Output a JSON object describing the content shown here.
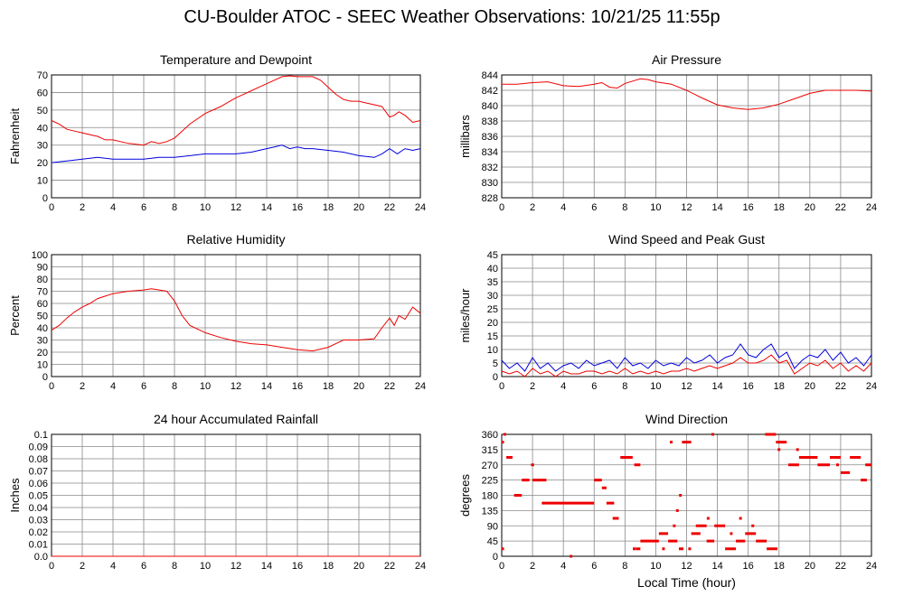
{
  "page": {
    "title": "CU-Boulder ATOC - SEEC Weather Observations: 10/21/25 11:55p"
  },
  "colors": {
    "red": "#ee0000",
    "blue": "#0000dd",
    "grid": "#888888",
    "frame": "#000000"
  },
  "chart_data": [
    {
      "id": "temp",
      "type": "line",
      "title": "Temperature and Dewpoint",
      "ylabel": "Fahrenheit",
      "xlabel": "",
      "xlim": [
        0,
        24
      ],
      "ylim": [
        0,
        70
      ],
      "yticks": [
        0,
        10,
        20,
        30,
        40,
        50,
        60,
        70
      ],
      "xticks": [
        0,
        2,
        4,
        6,
        8,
        10,
        12,
        14,
        16,
        18,
        20,
        22,
        24
      ],
      "grid": true,
      "series": [
        {
          "color": "#ee0000",
          "x": [
            0,
            0.5,
            1,
            1.5,
            2,
            2.5,
            3,
            3.5,
            4,
            5,
            6,
            6.5,
            7,
            7.5,
            8,
            8.5,
            9,
            10,
            11,
            12,
            12.5,
            13,
            13.5,
            14,
            14.5,
            15,
            15.5,
            16,
            16.5,
            17,
            17.5,
            18,
            18.5,
            19,
            19.5,
            20,
            20.5,
            21,
            21.5,
            22,
            22.3,
            22.6,
            23,
            23.5,
            24
          ],
          "y": [
            44,
            42,
            39,
            38,
            37,
            36,
            35,
            33,
            33,
            31,
            30,
            32,
            31,
            32,
            34,
            38,
            42,
            48,
            52,
            57,
            59,
            61,
            63,
            65,
            67,
            69,
            69.5,
            69,
            69,
            69,
            67,
            63,
            59,
            56,
            55,
            55,
            54,
            53,
            52,
            46,
            47,
            49,
            47,
            43,
            44
          ]
        },
        {
          "color": "#0000dd",
          "x": [
            0,
            1,
            2,
            3,
            4,
            5,
            6,
            7,
            8,
            9,
            10,
            11,
            12,
            13,
            14,
            14.5,
            15,
            15.5,
            16,
            16.5,
            17,
            18,
            19,
            20,
            21,
            21.5,
            22,
            22.5,
            23,
            23.5,
            24
          ],
          "y": [
            20,
            21,
            22,
            23,
            22,
            22,
            22,
            23,
            23,
            24,
            25,
            25,
            25,
            26,
            28,
            29,
            30,
            28,
            29,
            28,
            28,
            27,
            26,
            24,
            23,
            25,
            28,
            25,
            28,
            27,
            28
          ]
        }
      ]
    },
    {
      "id": "pressure",
      "type": "line",
      "title": "Air Pressure",
      "ylabel": "millibars",
      "xlabel": "",
      "xlim": [
        0,
        24
      ],
      "ylim": [
        828,
        844
      ],
      "yticks": [
        828,
        830,
        832,
        834,
        836,
        838,
        840,
        842,
        844
      ],
      "xticks": [
        0,
        2,
        4,
        6,
        8,
        10,
        12,
        14,
        16,
        18,
        20,
        22,
        24
      ],
      "grid": true,
      "series": [
        {
          "color": "#ee0000",
          "x": [
            0,
            1,
            2,
            3,
            4,
            5,
            6,
            6.5,
            7,
            7.5,
            8,
            8.5,
            9,
            9.5,
            10,
            11,
            12,
            13,
            14,
            15,
            16,
            17,
            18,
            19,
            20,
            21,
            22,
            23,
            24
          ],
          "y": [
            842.8,
            842.8,
            843.0,
            843.1,
            842.6,
            842.5,
            842.8,
            843.0,
            842.4,
            842.3,
            842.9,
            843.2,
            843.5,
            843.4,
            843.1,
            842.8,
            842.0,
            841.0,
            840.1,
            839.7,
            839.5,
            839.7,
            840.2,
            840.9,
            841.6,
            842.0,
            842.0,
            842.0,
            841.9
          ]
        }
      ]
    },
    {
      "id": "humidity",
      "type": "line",
      "title": "Relative Humidity",
      "ylabel": "Percent",
      "xlabel": "",
      "xlim": [
        0,
        24
      ],
      "ylim": [
        0,
        100
      ],
      "yticks": [
        0,
        10,
        20,
        30,
        40,
        50,
        60,
        70,
        80,
        90,
        100
      ],
      "xticks": [
        0,
        2,
        4,
        6,
        8,
        10,
        12,
        14,
        16,
        18,
        20,
        22,
        24
      ],
      "grid": true,
      "series": [
        {
          "color": "#ee0000",
          "x": [
            0,
            0.5,
            1,
            1.5,
            2,
            2.5,
            3,
            3.5,
            4,
            5,
            6,
            6.5,
            7,
            7.5,
            8,
            8.5,
            9,
            10,
            11,
            12,
            13,
            14,
            15,
            16,
            17,
            18,
            19,
            20,
            21,
            21.5,
            22,
            22.3,
            22.6,
            23,
            23.5,
            24
          ],
          "y": [
            38,
            42,
            48,
            53,
            57,
            60,
            64,
            66,
            68,
            70,
            71,
            72,
            71,
            70,
            62,
            50,
            42,
            36,
            32,
            29,
            27,
            26,
            24,
            22,
            21,
            24,
            30,
            30,
            31,
            40,
            48,
            42,
            50,
            47,
            57,
            52
          ]
        }
      ]
    },
    {
      "id": "wind",
      "type": "line",
      "title": "Wind Speed and Peak Gust",
      "ylabel": "miles/hour",
      "xlabel": "",
      "xlim": [
        0,
        24
      ],
      "ylim": [
        0,
        45
      ],
      "yticks": [
        0,
        5,
        10,
        15,
        20,
        25,
        30,
        35,
        40,
        45
      ],
      "xticks": [
        0,
        2,
        4,
        6,
        8,
        10,
        12,
        14,
        16,
        18,
        20,
        22,
        24
      ],
      "grid": true,
      "series": [
        {
          "color": "#0000dd",
          "x": [
            0,
            0.5,
            1,
            1.5,
            2,
            2.5,
            3,
            3.5,
            4,
            4.5,
            5,
            5.5,
            6,
            6.5,
            7,
            7.5,
            8,
            8.5,
            9,
            9.5,
            10,
            10.5,
            11,
            11.5,
            12,
            12.5,
            13,
            13.5,
            14,
            14.5,
            15,
            15.5,
            16,
            16.5,
            17,
            17.5,
            18,
            18.5,
            19,
            19.5,
            20,
            20.5,
            21,
            21.5,
            22,
            22.5,
            23,
            23.5,
            24
          ],
          "y": [
            6,
            3,
            5,
            2,
            7,
            3,
            5,
            2,
            4,
            5,
            3,
            6,
            4,
            5,
            6,
            3,
            7,
            4,
            5,
            3,
            6,
            4,
            5,
            4,
            7,
            5,
            6,
            8,
            5,
            7,
            8,
            12,
            8,
            7,
            10,
            12,
            7,
            9,
            3,
            6,
            8,
            7,
            10,
            6,
            9,
            5,
            7,
            4,
            8
          ]
        },
        {
          "color": "#ee0000",
          "x": [
            0,
            0.5,
            1,
            1.5,
            2,
            2.5,
            3,
            3.5,
            4,
            4.5,
            5,
            5.5,
            6,
            6.5,
            7,
            7.5,
            8,
            8.5,
            9,
            9.5,
            10,
            10.5,
            11,
            11.5,
            12,
            12.5,
            13,
            13.5,
            14,
            14.5,
            15,
            15.5,
            16,
            16.5,
            17,
            17.5,
            18,
            18.5,
            19,
            19.5,
            20,
            20.5,
            21,
            21.5,
            22,
            22.5,
            23,
            23.5,
            24
          ],
          "y": [
            2,
            1,
            2,
            0,
            3,
            1,
            2,
            0,
            2,
            1,
            1,
            2,
            2,
            1,
            2,
            1,
            3,
            1,
            2,
            1,
            2,
            1,
            2,
            2,
            3,
            2,
            3,
            4,
            3,
            4,
            5,
            7,
            5,
            5,
            6,
            8,
            5,
            6,
            1,
            3,
            5,
            4,
            6,
            3,
            5,
            2,
            4,
            2,
            5
          ]
        }
      ]
    },
    {
      "id": "rain",
      "type": "line",
      "title": "24 hour Accumulated Rainfall",
      "ylabel": "Inches",
      "xlabel": "",
      "xlim": [
        0,
        24
      ],
      "ylim": [
        0,
        0.1
      ],
      "yticks": [
        0.0,
        0.01,
        0.02,
        0.03,
        0.04,
        0.05,
        0.06,
        0.07,
        0.08,
        0.09,
        0.1
      ],
      "ytick_labels": [
        "0.0",
        "0.01",
        "0.02",
        "0.03",
        "0.04",
        "0.05",
        "0.06",
        "0.07",
        "0.08",
        "0.09",
        "0.1"
      ],
      "xticks": [
        0,
        2,
        4,
        6,
        8,
        10,
        12,
        14,
        16,
        18,
        20,
        22,
        24
      ],
      "grid": true,
      "series": [
        {
          "color": "#ee0000",
          "x": [
            0,
            24
          ],
          "y": [
            0,
            0
          ]
        }
      ]
    },
    {
      "id": "direction",
      "type": "scatter",
      "title": "Wind Direction",
      "ylabel": "degrees",
      "xlabel": "Local Time (hour)",
      "xlim": [
        0,
        24
      ],
      "ylim": [
        0,
        360
      ],
      "yticks": [
        0,
        45,
        90,
        135,
        180,
        225,
        270,
        315,
        360
      ],
      "xticks": [
        0,
        2,
        4,
        6,
        8,
        10,
        12,
        14,
        16,
        18,
        20,
        22,
        24
      ],
      "grid": true,
      "segments": [
        {
          "x0": 0.0,
          "x1": 0.15,
          "y": 337
        },
        {
          "x0": 0.0,
          "x1": 0.15,
          "y": 22
        },
        {
          "x0": 0.3,
          "x1": 0.7,
          "y": 292
        },
        {
          "x0": 0.8,
          "x1": 1.3,
          "y": 180
        },
        {
          "x0": 1.9,
          "x1": 2.1,
          "y": 270
        },
        {
          "x0": 1.3,
          "x1": 1.8,
          "y": 225
        },
        {
          "x0": 2.0,
          "x1": 2.9,
          "y": 225
        },
        {
          "x0": 2.6,
          "x1": 6.0,
          "y": 157
        },
        {
          "x0": 6.0,
          "x1": 6.5,
          "y": 225
        },
        {
          "x0": 6.5,
          "x1": 6.8,
          "y": 202
        },
        {
          "x0": 6.8,
          "x1": 7.3,
          "y": 157
        },
        {
          "x0": 7.2,
          "x1": 7.6,
          "y": 112
        },
        {
          "x0": 7.7,
          "x1": 8.5,
          "y": 292
        },
        {
          "x0": 8.6,
          "x1": 9.0,
          "y": 270
        },
        {
          "x0": 8.7,
          "x1": 9.0,
          "y": 22
        },
        {
          "x0": 9.0,
          "x1": 10.2,
          "y": 45
        },
        {
          "x0": 10.2,
          "x1": 10.8,
          "y": 67
        },
        {
          "x0": 10.8,
          "x1": 11.4,
          "y": 45
        },
        {
          "x0": 11.5,
          "x1": 11.8,
          "y": 22
        },
        {
          "x0": 11.7,
          "x1": 12.3,
          "y": 337
        },
        {
          "x0": 12.3,
          "x1": 12.9,
          "y": 67
        },
        {
          "x0": 12.6,
          "x1": 13.3,
          "y": 90
        },
        {
          "x0": 13.3,
          "x1": 13.8,
          "y": 45
        },
        {
          "x0": 13.8,
          "x1": 14.5,
          "y": 90
        },
        {
          "x0": 14.5,
          "x1": 15.2,
          "y": 22
        },
        {
          "x0": 15.2,
          "x1": 15.8,
          "y": 45
        },
        {
          "x0": 15.8,
          "x1": 16.5,
          "y": 67
        },
        {
          "x0": 16.5,
          "x1": 17.2,
          "y": 45
        },
        {
          "x0": 17.2,
          "x1": 17.9,
          "y": 22
        },
        {
          "x0": 17.1,
          "x1": 17.8,
          "y": 360
        },
        {
          "x0": 17.8,
          "x1": 18.5,
          "y": 337
        },
        {
          "x0": 18.6,
          "x1": 19.3,
          "y": 270
        },
        {
          "x0": 19.3,
          "x1": 20.5,
          "y": 292
        },
        {
          "x0": 20.5,
          "x1": 21.3,
          "y": 270
        },
        {
          "x0": 21.3,
          "x1": 22.0,
          "y": 292
        },
        {
          "x0": 22.0,
          "x1": 22.6,
          "y": 247
        },
        {
          "x0": 22.6,
          "x1": 23.3,
          "y": 292
        },
        {
          "x0": 23.3,
          "x1": 23.7,
          "y": 225
        },
        {
          "x0": 23.6,
          "x1": 24.0,
          "y": 270
        }
      ],
      "points": [
        {
          "x": 4.5,
          "y": 0
        },
        {
          "x": 8.6,
          "y": 22
        },
        {
          "x": 11.0,
          "y": 337
        },
        {
          "x": 11.6,
          "y": 180
        },
        {
          "x": 11.2,
          "y": 90
        },
        {
          "x": 11.4,
          "y": 135
        },
        {
          "x": 13.7,
          "y": 360
        },
        {
          "x": 13.4,
          "y": 112
        },
        {
          "x": 15.5,
          "y": 112
        },
        {
          "x": 16.3,
          "y": 90
        },
        {
          "x": 19.2,
          "y": 315
        },
        {
          "x": 12.2,
          "y": 22
        },
        {
          "x": 14.9,
          "y": 67
        },
        {
          "x": 10.5,
          "y": 22
        },
        {
          "x": 18.0,
          "y": 315
        },
        {
          "x": 0.2,
          "y": 360
        },
        {
          "x": 21.8,
          "y": 270
        }
      ]
    }
  ]
}
